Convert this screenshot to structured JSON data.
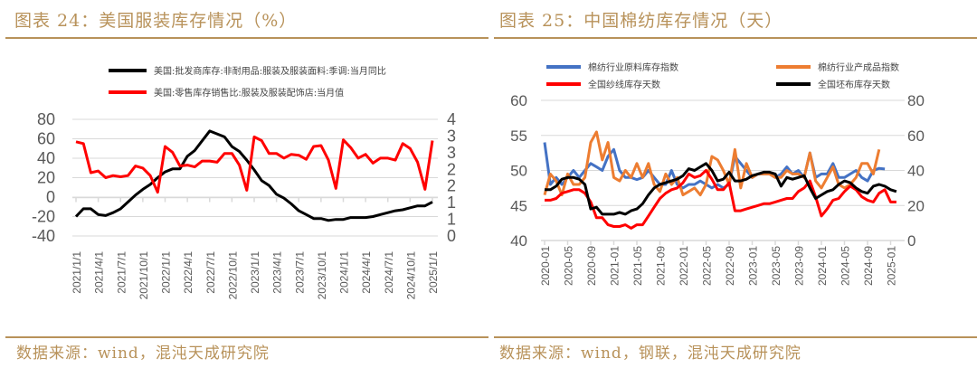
{
  "left": {
    "title": "图表 24：美国服装库存情况（%）",
    "source": "数据来源：wind，混沌天成研究院"
  },
  "right": {
    "title": "图表 25：中国棉纺库存情况（天）",
    "source": "数据来源：wind，钢联，混沌天成研究院"
  },
  "chart_data": [
    {
      "type": "line",
      "title": "美国服装库存情况（%）",
      "x_tick_labels": [
        "2021/1/1",
        "2021/4/1",
        "2021/7/1",
        "2021/10/1",
        "2022/1/1",
        "2022/4/1",
        "2022/7/1",
        "2022/10/1",
        "2023/1/1",
        "2023/4/1",
        "2023/7/1",
        "2023/10/1",
        "2024/1/1",
        "2024/4/1",
        "2024/7/1",
        "2024/10/1",
        "2025/1/1"
      ],
      "x_start": "2021-01",
      "x_end": "2025-01",
      "x_frequency": "monthly",
      "y_left": {
        "ylim": [
          -40,
          80
        ],
        "ticks": [
          "80",
          "60",
          "40",
          "20",
          "0",
          "-20",
          "-40"
        ]
      },
      "y_right": {
        "ylim": [
          0,
          4
        ],
        "ticks": [
          "4",
          "3",
          "3",
          "2",
          "2",
          "1",
          "1",
          "0"
        ]
      },
      "grid": true,
      "legend_position": "top",
      "series": [
        {
          "name": "美国:批发商库存:非耐用品:服装及服装面料:季调:当月同比",
          "axis": "left",
          "color": "#000000",
          "values": [
            -20,
            -12,
            -12,
            -18,
            -19,
            -16,
            -12,
            -5,
            2,
            8,
            13,
            20,
            26,
            29,
            29,
            42,
            48,
            58,
            68,
            65,
            62,
            52,
            47,
            38,
            28,
            17,
            12,
            3,
            -1,
            -7,
            -14,
            -18,
            -22,
            -22,
            -24,
            -23,
            -23,
            -21,
            -21,
            -21,
            -20,
            -18,
            -16,
            -14,
            -13,
            -11,
            -9,
            -9,
            -5
          ]
        },
        {
          "name": "美国:零售库存销售比:服装及服装配饰店:当月值",
          "axis": "right",
          "color": "#ff0000",
          "values": [
            3.23,
            3.17,
            2.17,
            2.23,
            2.0,
            2.07,
            2.03,
            2.07,
            2.4,
            2.33,
            2.07,
            1.5,
            3.07,
            2.87,
            2.4,
            2.43,
            2.37,
            2.57,
            2.57,
            2.53,
            2.83,
            2.83,
            2.43,
            1.57,
            3.4,
            3.27,
            2.83,
            2.83,
            2.67,
            2.8,
            2.77,
            2.63,
            3.07,
            3.1,
            2.6,
            1.63,
            3.3,
            3.03,
            2.67,
            2.8,
            2.5,
            2.67,
            2.67,
            2.6,
            3.17,
            3.0,
            2.53,
            1.6,
            3.27
          ]
        }
      ]
    },
    {
      "type": "line",
      "title": "中国棉纺库存情况（天）",
      "x_tick_labels": [
        "2020-01",
        "2020-05",
        "2020-09",
        "2021-01",
        "2021-05",
        "2021-09",
        "2022-01",
        "2022-05",
        "2022-09",
        "2023-01",
        "2023-05",
        "2023-09",
        "2024-01",
        "2024-05",
        "2024-09",
        "2025-01"
      ],
      "x_start": "2020-01",
      "x_frequency": "monthly",
      "y_left": {
        "ylim": [
          40,
          60
        ],
        "ticks": [
          "60",
          "55",
          "50",
          "45",
          "40"
        ]
      },
      "y_right": {
        "ylim": [
          0,
          80
        ],
        "ticks": [
          "80",
          "60",
          "40",
          "20",
          "0"
        ]
      },
      "grid": true,
      "legend_position": "top",
      "series": [
        {
          "name": "棉纺行业原料库存指数",
          "axis": "left",
          "color": "#4472c4",
          "values": [
            54,
            48,
            49,
            48,
            49,
            50,
            49,
            50,
            51,
            50.5,
            50,
            52,
            53,
            50,
            49,
            49,
            48.7,
            49,
            50,
            49,
            48,
            48,
            50,
            48,
            47.5,
            48,
            48,
            48.5,
            48,
            47.5,
            48,
            47.5,
            48,
            52,
            51,
            50,
            49,
            49.5,
            49.5,
            49.5,
            49,
            49.5,
            50.5,
            49.5,
            50,
            49,
            52.5,
            49,
            49.5,
            49.5,
            51,
            49,
            49,
            49.5,
            50,
            49,
            48.5,
            50,
            50.3,
            50.2
          ]
        },
        {
          "name": "棉纺行业产成品指数",
          "axis": "left",
          "color": "#ed7d31",
          "values": [
            46.5,
            49.5,
            48.5,
            46.5,
            49.5,
            48,
            48,
            49,
            54,
            55.5,
            51.5,
            54,
            49,
            48.5,
            50,
            49,
            51,
            49,
            51,
            48,
            47,
            49.5,
            48,
            49,
            46.5,
            47,
            47.5,
            46.5,
            48,
            52,
            51.5,
            50,
            48,
            53,
            47.5,
            51,
            49,
            49.5,
            49.5,
            49.5,
            49,
            49,
            50,
            49.5,
            49.5,
            49,
            52.5,
            48.5,
            47.5,
            49,
            50.5,
            48,
            47.5,
            48,
            49,
            51,
            51,
            49.5,
            53
          ]
        },
        {
          "name": "全国纱线库存天数",
          "axis": "right",
          "color": "#ff0000",
          "values": [
            23,
            23,
            24,
            27,
            28,
            29,
            29,
            27,
            22,
            13,
            13,
            9,
            8,
            8,
            9,
            7,
            9,
            9,
            14,
            19,
            24,
            27,
            29,
            30,
            33,
            38,
            36,
            37,
            40,
            35,
            29,
            29,
            33,
            17,
            17,
            18,
            19,
            20,
            21,
            21,
            22,
            23,
            24,
            24,
            28,
            30,
            34,
            25,
            14,
            18,
            23,
            24,
            28,
            31,
            29,
            25,
            23,
            22,
            27,
            29,
            22,
            22
          ]
        },
        {
          "name": "全国坯布库存天数",
          "axis": "right",
          "color": "#000000",
          "values": [
            29,
            29,
            31,
            35,
            36,
            36,
            35,
            32,
            18,
            19,
            15,
            15,
            15,
            16,
            15,
            17,
            18,
            21,
            26,
            30,
            32,
            33,
            34,
            35,
            37,
            41,
            40,
            42,
            44,
            40,
            34,
            35,
            39,
            34,
            34,
            35,
            37,
            38,
            39,
            39,
            38,
            31,
            36,
            35,
            36,
            37,
            30,
            24,
            26,
            28,
            29,
            32,
            34,
            33,
            30,
            28,
            27,
            31,
            32,
            31,
            29,
            28
          ]
        }
      ]
    }
  ]
}
